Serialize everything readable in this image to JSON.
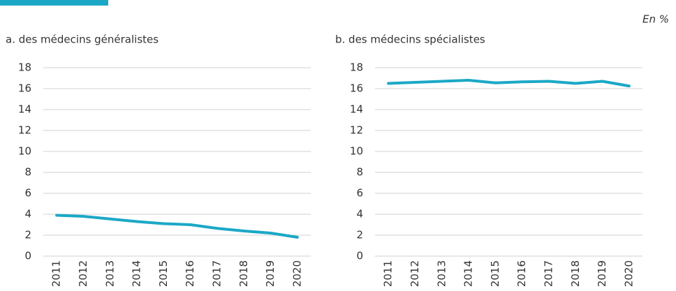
{
  "note": "En %",
  "chart_data": [
    {
      "type": "line",
      "title": "a. des médecins généralistes",
      "categories": [
        "2011",
        "2012",
        "2013",
        "2014",
        "2015",
        "2016",
        "2017",
        "2018",
        "2019",
        "2020"
      ],
      "values": [
        3.9,
        3.8,
        3.55,
        3.3,
        3.1,
        3.0,
        2.65,
        2.4,
        2.2,
        1.8
      ],
      "color": "#1ba8c6",
      "ylim": [
        0,
        18
      ],
      "yticks": [
        0,
        2,
        4,
        6,
        8,
        10,
        12,
        14,
        16,
        18
      ],
      "grid": true
    },
    {
      "type": "line",
      "title": "b. des médecins spécialistes",
      "categories": [
        "2011",
        "2012",
        "2013",
        "2014",
        "2015",
        "2016",
        "2017",
        "2018",
        "2019",
        "2020"
      ],
      "values": [
        16.5,
        16.6,
        16.7,
        16.8,
        16.55,
        16.65,
        16.7,
        16.5,
        16.7,
        16.25
      ],
      "color": "#1ba8c6",
      "ylim": [
        0,
        18
      ],
      "yticks": [
        0,
        2,
        4,
        6,
        8,
        10,
        12,
        14,
        16,
        18
      ],
      "grid": true
    }
  ]
}
